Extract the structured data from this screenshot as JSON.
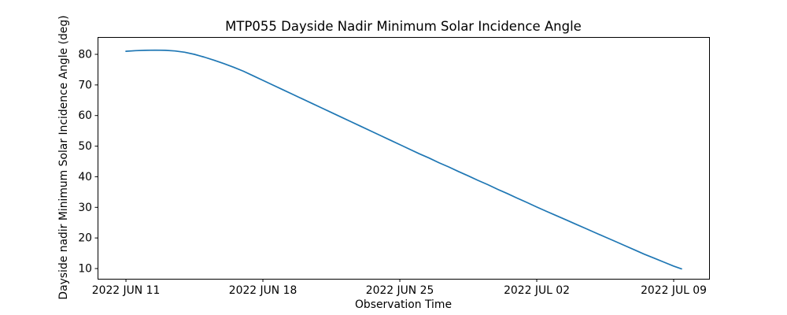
{
  "figure": {
    "background": "#ffffff"
  },
  "chart_data": {
    "type": "line",
    "title": "MTP055 Dayside Nadir Minimum Solar Incidence Angle",
    "xlabel": "Observation Time",
    "ylabel": "Dayside nadir Minimum Solar Incidence Angle (deg)",
    "grid": false,
    "legend": "none",
    "axis_color": "#000000",
    "text_color": "#000000",
    "x_ticks": {
      "labels": [
        "2022 JUN 11",
        "2022 JUN 18",
        "2022 JUN 25",
        "2022 JUL 02",
        "2022 JUL 09"
      ],
      "day_offsets": [
        0,
        7,
        14,
        21,
        28
      ]
    },
    "y_ticks": [
      10,
      20,
      30,
      40,
      50,
      60,
      70,
      80
    ],
    "xlim_day_offsets": [
      -1.45,
      29.81
    ],
    "ylim": [
      6.66,
      85.66
    ],
    "series": [
      {
        "name": "dayside-nadir-min-solar-incidence-angle",
        "color": "#1f77b4",
        "line_width": 1.7,
        "x_days_from_2022_jun_11": [
          0,
          0.5,
          1,
          1.5,
          2,
          2.5,
          3,
          3.5,
          4,
          4.5,
          5,
          5.5,
          6,
          6.5,
          7,
          7.5,
          8,
          8.5,
          9,
          9.5,
          10,
          10.5,
          11,
          11.5,
          12,
          12.5,
          13,
          13.5,
          14,
          14.5,
          15,
          15.5,
          16,
          16.5,
          17,
          17.5,
          18,
          18.5,
          19,
          19.5,
          20,
          20.5,
          21,
          21.5,
          22,
          22.5,
          23,
          23.5,
          24,
          24.5,
          25,
          25.5,
          26,
          26.5,
          27,
          27.5,
          28,
          28.4
        ],
        "values": [
          81.0,
          81.2,
          81.3,
          81.35,
          81.3,
          81.1,
          80.7,
          80.0,
          79.1,
          78.1,
          77.0,
          75.8,
          74.5,
          73.0,
          71.5,
          70.0,
          68.5,
          67.0,
          65.5,
          64.0,
          62.5,
          61.0,
          59.5,
          58.0,
          56.5,
          55.0,
          53.5,
          52.0,
          50.5,
          49.0,
          47.5,
          46.1,
          44.6,
          43.2,
          41.7,
          40.3,
          38.8,
          37.4,
          35.9,
          34.5,
          33.0,
          31.6,
          30.1,
          28.7,
          27.3,
          25.9,
          24.5,
          23.1,
          21.7,
          20.3,
          18.9,
          17.5,
          16.1,
          14.7,
          13.4,
          12.1,
          10.8,
          9.9
        ]
      }
    ]
  }
}
